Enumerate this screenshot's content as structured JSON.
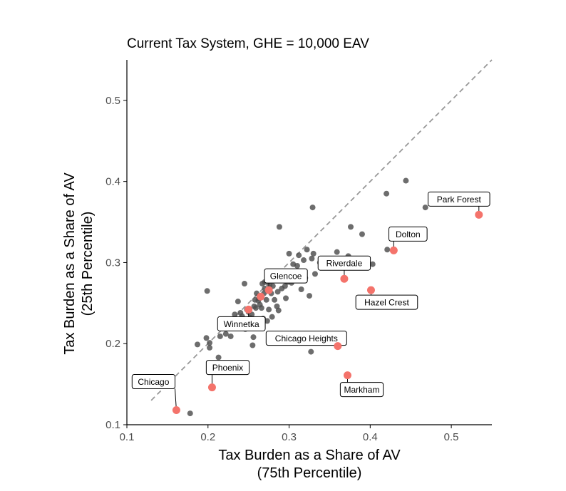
{
  "chart_data": {
    "type": "scatter",
    "title": "Current Tax System, GHE = 10,000 EAV",
    "xlabel": [
      "Tax Burden as a Share of AV",
      "(75th Percentile)"
    ],
    "ylabel": [
      "Tax Burden as a Share of AV",
      "(25th Percentile)"
    ],
    "xlim": [
      0.1,
      0.55
    ],
    "ylim": [
      0.1,
      0.55
    ],
    "xticks": [
      0.1,
      0.2,
      0.3,
      0.4,
      0.5
    ],
    "yticks": [
      0.1,
      0.2,
      0.3,
      0.4,
      0.5
    ],
    "xtick_labels": [
      "0.1",
      "0.2",
      "0.3",
      "0.4",
      "0.5"
    ],
    "ytick_labels": [
      "0.1",
      "0.2",
      "0.3",
      "0.4",
      "0.5"
    ],
    "reference_line": "y = x (dashed)",
    "grid": false,
    "colors": {
      "points": "#4d4d4d",
      "highlight": "#f4736b",
      "reference": "#999999"
    },
    "points": [
      [
        0.148,
        0.154
      ],
      [
        0.178,
        0.114
      ],
      [
        0.187,
        0.199
      ],
      [
        0.198,
        0.207
      ],
      [
        0.199,
        0.265
      ],
      [
        0.202,
        0.195
      ],
      [
        0.202,
        0.201
      ],
      [
        0.213,
        0.183
      ],
      [
        0.215,
        0.209
      ],
      [
        0.218,
        0.224
      ],
      [
        0.222,
        0.212
      ],
      [
        0.224,
        0.219
      ],
      [
        0.226,
        0.229
      ],
      [
        0.228,
        0.209
      ],
      [
        0.232,
        0.224
      ],
      [
        0.233,
        0.236
      ],
      [
        0.237,
        0.252
      ],
      [
        0.238,
        0.229
      ],
      [
        0.24,
        0.238
      ],
      [
        0.242,
        0.234
      ],
      [
        0.245,
        0.274
      ],
      [
        0.246,
        0.218
      ],
      [
        0.248,
        0.242
      ],
      [
        0.25,
        0.239
      ],
      [
        0.252,
        0.232
      ],
      [
        0.254,
        0.236
      ],
      [
        0.255,
        0.198
      ],
      [
        0.256,
        0.208
      ],
      [
        0.257,
        0.246
      ],
      [
        0.258,
        0.254
      ],
      [
        0.259,
        0.244
      ],
      [
        0.26,
        0.262
      ],
      [
        0.262,
        0.253
      ],
      [
        0.263,
        0.256
      ],
      [
        0.264,
        0.248
      ],
      [
        0.265,
        0.258
      ],
      [
        0.266,
        0.244
      ],
      [
        0.267,
        0.274
      ],
      [
        0.268,
        0.231
      ],
      [
        0.269,
        0.262
      ],
      [
        0.27,
        0.268
      ],
      [
        0.27,
        0.276
      ],
      [
        0.272,
        0.254
      ],
      [
        0.273,
        0.228
      ],
      [
        0.274,
        0.265
      ],
      [
        0.275,
        0.242
      ],
      [
        0.276,
        0.272
      ],
      [
        0.277,
        0.212
      ],
      [
        0.278,
        0.262
      ],
      [
        0.279,
        0.233
      ],
      [
        0.28,
        0.271
      ],
      [
        0.282,
        0.254
      ],
      [
        0.283,
        0.283
      ],
      [
        0.285,
        0.246
      ],
      [
        0.286,
        0.264
      ],
      [
        0.287,
        0.241
      ],
      [
        0.288,
        0.344
      ],
      [
        0.289,
        0.279
      ],
      [
        0.291,
        0.268
      ],
      [
        0.292,
        0.286
      ],
      [
        0.295,
        0.271
      ],
      [
        0.296,
        0.256
      ],
      [
        0.298,
        0.276
      ],
      [
        0.3,
        0.311
      ],
      [
        0.302,
        0.289
      ],
      [
        0.303,
        0.275
      ],
      [
        0.305,
        0.298
      ],
      [
        0.307,
        0.282
      ],
      [
        0.31,
        0.296
      ],
      [
        0.312,
        0.309
      ],
      [
        0.315,
        0.267
      ],
      [
        0.318,
        0.303
      ],
      [
        0.32,
        0.281
      ],
      [
        0.322,
        0.316
      ],
      [
        0.325,
        0.259
      ],
      [
        0.327,
        0.19
      ],
      [
        0.328,
        0.305
      ],
      [
        0.329,
        0.368
      ],
      [
        0.33,
        0.311
      ],
      [
        0.332,
        0.286
      ],
      [
        0.338,
        0.3
      ],
      [
        0.348,
        0.304
      ],
      [
        0.359,
        0.313
      ],
      [
        0.373,
        0.308
      ],
      [
        0.376,
        0.344
      ],
      [
        0.383,
        0.302
      ],
      [
        0.39,
        0.335
      ],
      [
        0.397,
        0.3
      ],
      [
        0.403,
        0.298
      ],
      [
        0.42,
        0.385
      ],
      [
        0.421,
        0.316
      ],
      [
        0.444,
        0.401
      ],
      [
        0.468,
        0.368
      ]
    ],
    "highlighted": [
      {
        "name": "Chicago",
        "x": 0.161,
        "y": 0.118
      },
      {
        "name": "Phoenix",
        "x": 0.205,
        "y": 0.146
      },
      {
        "name": "Winnetka",
        "x": 0.25,
        "y": 0.242
      },
      {
        "name": "Glencoe",
        "x": 0.265,
        "y": 0.258
      },
      {
        "name": "Glencoe2",
        "x": 0.275,
        "y": 0.266
      },
      {
        "name": "Riverdale",
        "x": 0.368,
        "y": 0.28
      },
      {
        "name": "Chicago Heights",
        "x": 0.36,
        "y": 0.197
      },
      {
        "name": "Markham",
        "x": 0.372,
        "y": 0.161
      },
      {
        "name": "Hazel Crest",
        "x": 0.401,
        "y": 0.266
      },
      {
        "name": "Dolton",
        "x": 0.429,
        "y": 0.315
      },
      {
        "name": "Park Forest",
        "x": 0.534,
        "y": 0.359
      }
    ],
    "annotations": [
      {
        "label": "Chicago",
        "point": 0
      },
      {
        "label": "Phoenix",
        "point": 1
      },
      {
        "label": "Winnetka",
        "point": 2
      },
      {
        "label": "Glencoe",
        "point": 4
      },
      {
        "label": "Riverdale",
        "point": 5
      },
      {
        "label": "Chicago Heights",
        "point": 6
      },
      {
        "label": "Markham",
        "point": 7
      },
      {
        "label": "Hazel Crest",
        "point": 8
      },
      {
        "label": "Dolton",
        "point": 9
      },
      {
        "label": "Park Forest",
        "point": 10
      }
    ]
  }
}
